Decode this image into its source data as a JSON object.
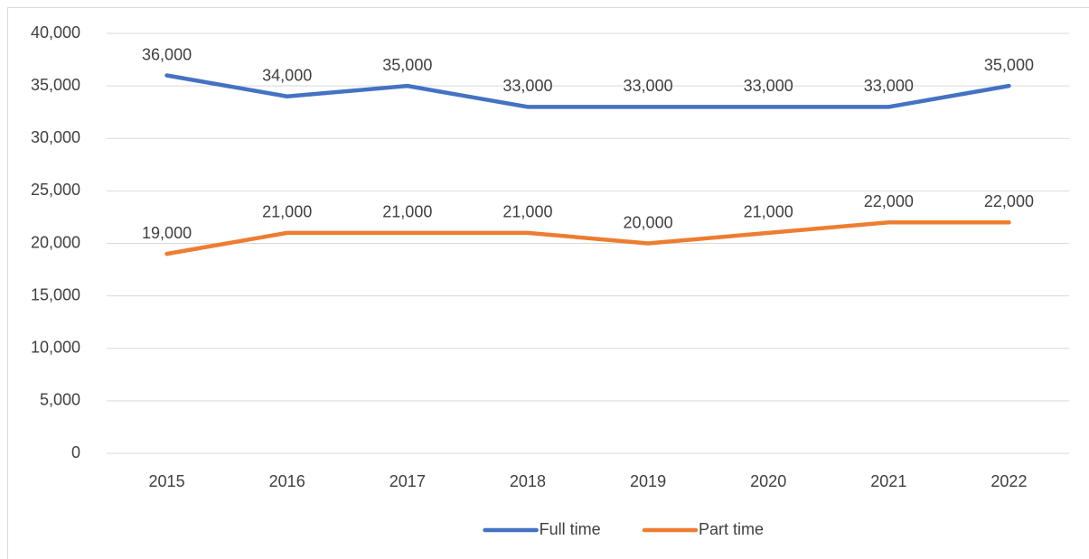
{
  "chart_data": {
    "type": "line",
    "categories": [
      "2015",
      "2016",
      "2017",
      "2018",
      "2019",
      "2020",
      "2021",
      "2022"
    ],
    "series": [
      {
        "name": "Full time",
        "color": "#4472c4",
        "values": [
          36000,
          34000,
          35000,
          33000,
          33000,
          33000,
          33000,
          35000
        ],
        "value_labels": [
          "36,000",
          "34,000",
          "35,000",
          "33,000",
          "33,000",
          "33,000",
          "33,000",
          "35,000"
        ]
      },
      {
        "name": "Part time",
        "color": "#ed7d31",
        "values": [
          19000,
          21000,
          21000,
          21000,
          20000,
          21000,
          22000,
          22000
        ],
        "value_labels": [
          "19,000",
          "21,000",
          "21,000",
          "21,000",
          "20,000",
          "21,000",
          "22,000",
          "22,000"
        ]
      }
    ],
    "ylim": [
      0,
      40000
    ],
    "yticks": [
      0,
      {
        "value": 5000,
        "label": "5,000"
      },
      {
        "value": 10000,
        "label": "10,000"
      },
      {
        "value": 15000,
        "label": "15,000"
      },
      {
        "value": 20000,
        "label": "20,000"
      },
      {
        "value": 25000,
        "label": "25,000"
      },
      {
        "value": 30000,
        "label": "30,000"
      },
      {
        "value": 35000,
        "label": "35,000"
      },
      {
        "value": 40000,
        "label": "40,000"
      }
    ],
    "grid": true,
    "legend": "bottom"
  }
}
